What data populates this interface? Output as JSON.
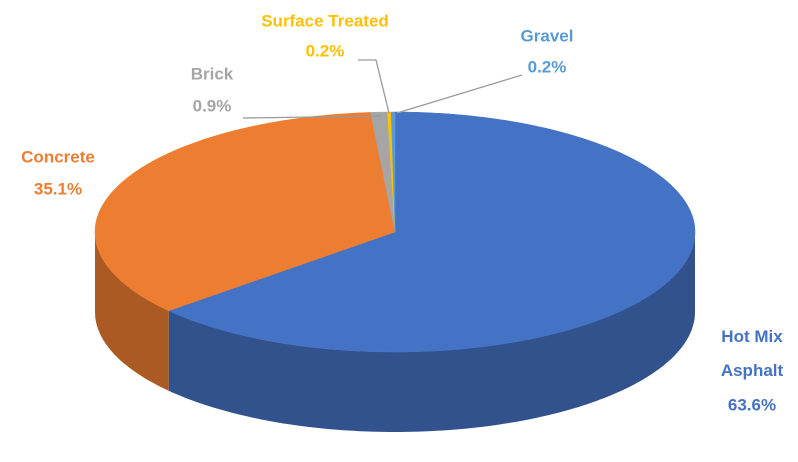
{
  "chart_data": {
    "type": "pie",
    "categories": [
      "Hot Mix Asphalt",
      "Concrete",
      "Brick",
      "Surface Treated",
      "Gravel"
    ],
    "values": [
      63.6,
      35.1,
      0.9,
      0.2,
      0.2
    ],
    "value_labels": [
      "63.6%",
      "35.1%",
      "0.9%",
      "0.2%",
      "0.2%"
    ],
    "colors": [
      "#4472c4",
      "#ed7d31",
      "#a5a5a5",
      "#ffc000",
      "#5b9bd5"
    ]
  }
}
